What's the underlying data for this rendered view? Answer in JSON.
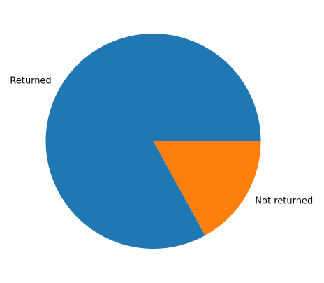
{
  "chart_data": {
    "type": "pie",
    "title": "",
    "slices": [
      {
        "label": "Returned",
        "value": 83,
        "color": "#1f77b4"
      },
      {
        "label": "Not returned",
        "value": 17,
        "color": "#ff7f0e"
      }
    ],
    "start_angle_deg": 0,
    "direction": "counterclockwise",
    "legend": "none"
  }
}
